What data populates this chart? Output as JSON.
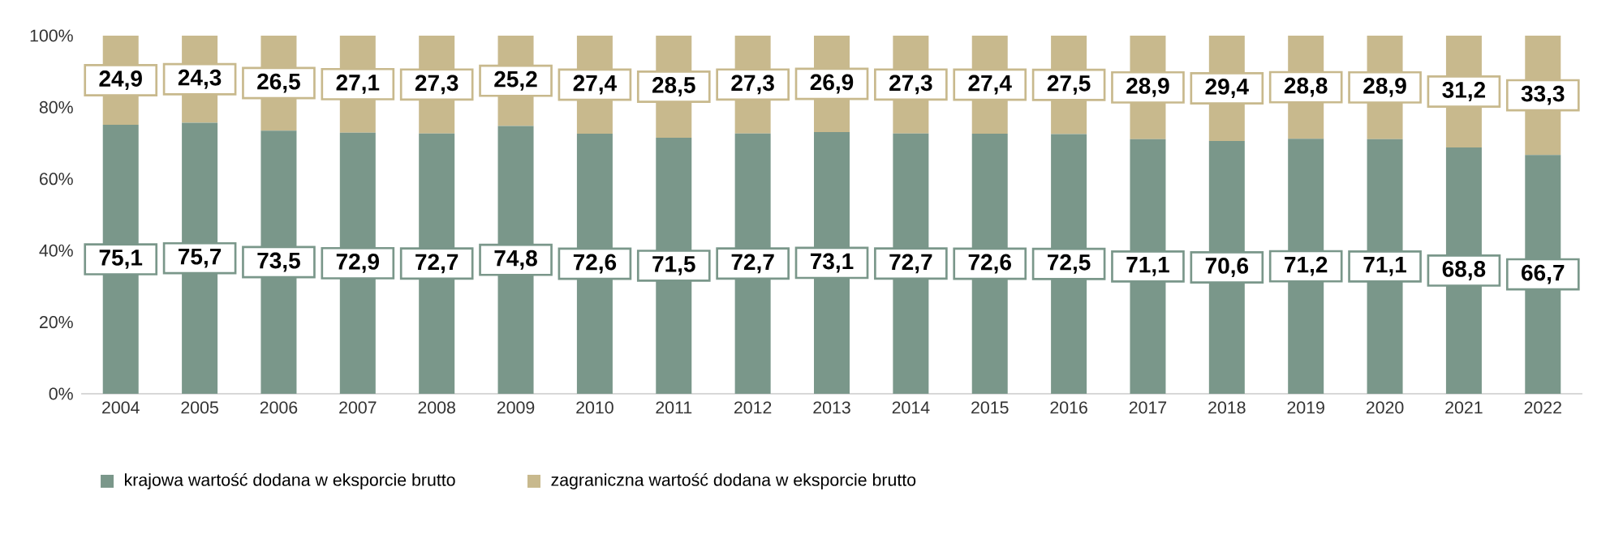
{
  "chart_data": {
    "type": "bar",
    "stacked": true,
    "data_labels": true,
    "legend": "bottom",
    "categories": [
      "2004",
      "2005",
      "2006",
      "2007",
      "2008",
      "2009",
      "2010",
      "2011",
      "2012",
      "2013",
      "2014",
      "2015",
      "2016",
      "2017",
      "2018",
      "2019",
      "2020",
      "2021",
      "2022"
    ],
    "ylim": [
      0,
      100
    ],
    "yticks": [
      {
        "value": 0,
        "label": "0%"
      },
      {
        "value": 20,
        "label": "20%"
      },
      {
        "value": 40,
        "label": "40%"
      },
      {
        "value": 60,
        "label": "60%"
      },
      {
        "value": 80,
        "label": "80%"
      },
      {
        "value": 100,
        "label": "100%"
      }
    ],
    "series": [
      {
        "name": "krajowa wartość dodana w eksporcie brutto",
        "color": "#7a978a",
        "values": [
          75.1,
          75.7,
          73.5,
          72.9,
          72.7,
          74.8,
          72.6,
          71.5,
          72.7,
          73.1,
          72.7,
          72.6,
          72.5,
          71.1,
          70.6,
          71.2,
          71.1,
          68.8,
          66.7
        ],
        "value_labels": [
          "75,1",
          "75,7",
          "73,5",
          "72,9",
          "72,7",
          "74,8",
          "72,6",
          "71,5",
          "72,7",
          "73,1",
          "72,7",
          "72,6",
          "72,5",
          "71,1",
          "70,6",
          "71,2",
          "71,1",
          "68,8",
          "66,7"
        ]
      },
      {
        "name": "zagraniczna wartość dodana w eksporcie brutto",
        "color": "#c8b98d",
        "values": [
          24.9,
          24.3,
          26.5,
          27.1,
          27.3,
          25.2,
          27.4,
          28.5,
          27.3,
          26.9,
          27.3,
          27.4,
          27.5,
          28.9,
          29.4,
          28.8,
          28.9,
          31.2,
          33.3
        ],
        "value_labels": [
          "24,9",
          "24,3",
          "26,5",
          "27,1",
          "27,3",
          "25,2",
          "27,4",
          "28,5",
          "27,3",
          "26,9",
          "27,3",
          "27,4",
          "27,5",
          "28,9",
          "29,4",
          "28,8",
          "28,9",
          "31,2",
          "33,3"
        ]
      }
    ]
  }
}
